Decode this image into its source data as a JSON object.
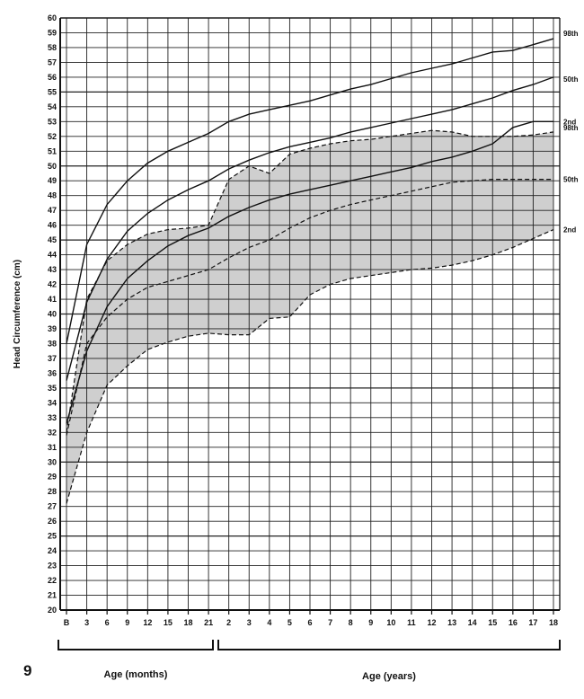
{
  "figure_number": "9",
  "chart_data": {
    "type": "line",
    "ylabel": "Head Circumference (cm)",
    "xlabel_groups": [
      "Age (months)",
      "Age (years)"
    ],
    "ylim": [
      20,
      60
    ],
    "yticks": [
      20,
      21,
      22,
      23,
      24,
      25,
      26,
      27,
      28,
      29,
      30,
      31,
      32,
      33,
      34,
      35,
      36,
      37,
      38,
      39,
      40,
      41,
      42,
      43,
      44,
      45,
      46,
      47,
      48,
      49,
      50,
      51,
      52,
      53,
      54,
      55,
      56,
      57,
      58,
      59,
      60
    ],
    "x_tick_labels": [
      "B",
      "3",
      "6",
      "9",
      "12",
      "15",
      "18",
      "21",
      "2",
      "3",
      "4",
      "5",
      "6",
      "7",
      "8",
      "9",
      "10",
      "11",
      "12",
      "13",
      "14",
      "15",
      "16",
      "17",
      "18"
    ],
    "grid": true,
    "series": [
      {
        "name": "98th",
        "style": "solid",
        "values": [
          38,
          44.7,
          47.4,
          49,
          50.2,
          51,
          51.6,
          52.2,
          53,
          53.5,
          53.8,
          54.1,
          54.4,
          54.8,
          55.2,
          55.5,
          55.9,
          56.3,
          56.6,
          56.9,
          57.3,
          57.7,
          57.8,
          58.2,
          58.6
        ]
      },
      {
        "name": "50th",
        "style": "solid",
        "values": [
          35.5,
          40.8,
          43.7,
          45.6,
          46.8,
          47.7,
          48.4,
          49,
          49.8,
          50.4,
          50.9,
          51.3,
          51.6,
          51.9,
          52.3,
          52.6,
          52.9,
          53.2,
          53.5,
          53.8,
          54.2,
          54.6,
          55.1,
          55.5,
          56
        ]
      },
      {
        "name": "2nd",
        "style": "solid",
        "values": [
          32.6,
          37.5,
          40.5,
          42.4,
          43.6,
          44.6,
          45.3,
          45.8,
          46.6,
          47.2,
          47.7,
          48.1,
          48.4,
          48.7,
          49,
          49.3,
          49.6,
          49.9,
          50.3,
          50.6,
          51,
          51.5,
          52.6,
          53,
          53
        ]
      },
      {
        "name": "98th",
        "style": "dashed",
        "values": [
          32,
          41,
          43.6,
          44.7,
          45.4,
          45.7,
          45.8,
          46,
          49.1,
          50,
          49.5,
          50.8,
          51.2,
          51.5,
          51.7,
          51.8,
          52,
          52.2,
          52.4,
          52.3,
          52,
          52,
          52,
          52.1,
          52.3
        ]
      },
      {
        "name": "50th",
        "style": "dashed",
        "values": [
          31.8,
          38,
          39.8,
          41,
          41.8,
          42.2,
          42.6,
          43,
          43.8,
          44.5,
          45,
          45.8,
          46.5,
          47,
          47.4,
          47.7,
          48,
          48.3,
          48.6,
          48.9,
          49,
          49.1,
          49.1,
          49.1,
          49.1
        ]
      },
      {
        "name": "2nd",
        "style": "dashed",
        "values": [
          27.2,
          32,
          35.2,
          36.5,
          37.6,
          38.1,
          38.5,
          38.7,
          38.6,
          38.6,
          39.7,
          39.8,
          41.3,
          42,
          42.4,
          42.6,
          42.8,
          43,
          43.1,
          43.3,
          43.6,
          44,
          44.5,
          45.1,
          45.7
        ]
      }
    ]
  }
}
